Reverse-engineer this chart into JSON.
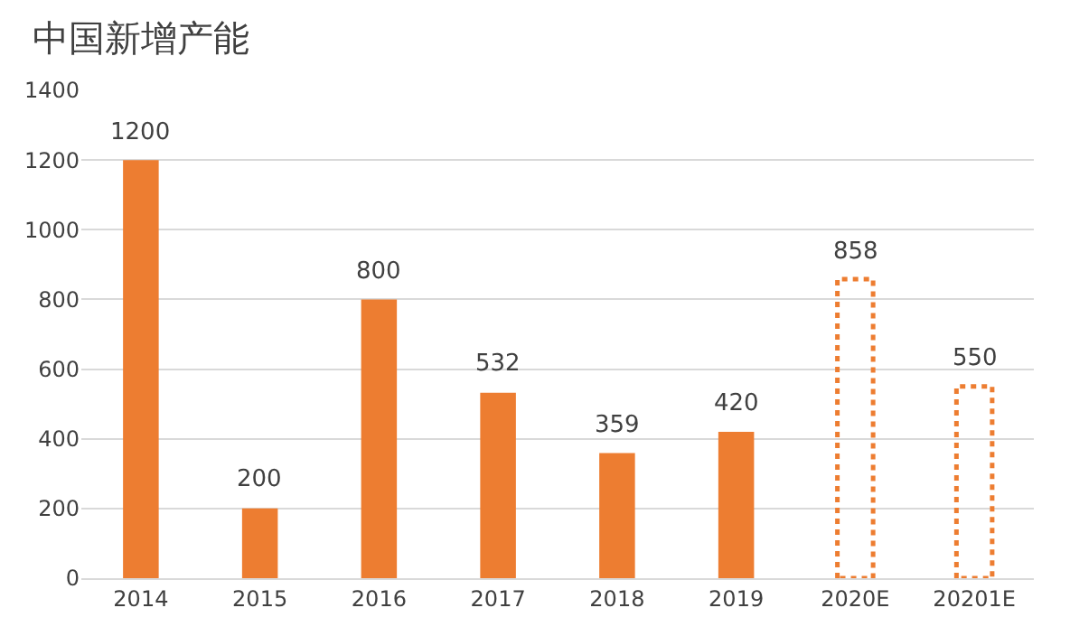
{
  "chart_data": {
    "type": "bar",
    "title": "中国新增产能",
    "categories": [
      "2014",
      "2015",
      "2016",
      "2017",
      "2018",
      "2019",
      "2020E",
      "20201E"
    ],
    "series": [
      {
        "color": "#ed7d31",
        "values": [
          1200,
          200,
          800,
          532,
          359,
          420,
          null,
          null
        ]
      },
      {
        "color": "#ed7d31",
        "line_style": "dotted",
        "values": [
          null,
          null,
          null,
          null,
          null,
          null,
          858,
          550
        ]
      }
    ],
    "ylim": [
      0,
      1400
    ],
    "yticks": [
      0,
      200,
      400,
      600,
      800,
      1000,
      1200,
      1400
    ],
    "grid": "y",
    "data_labels": true
  }
}
